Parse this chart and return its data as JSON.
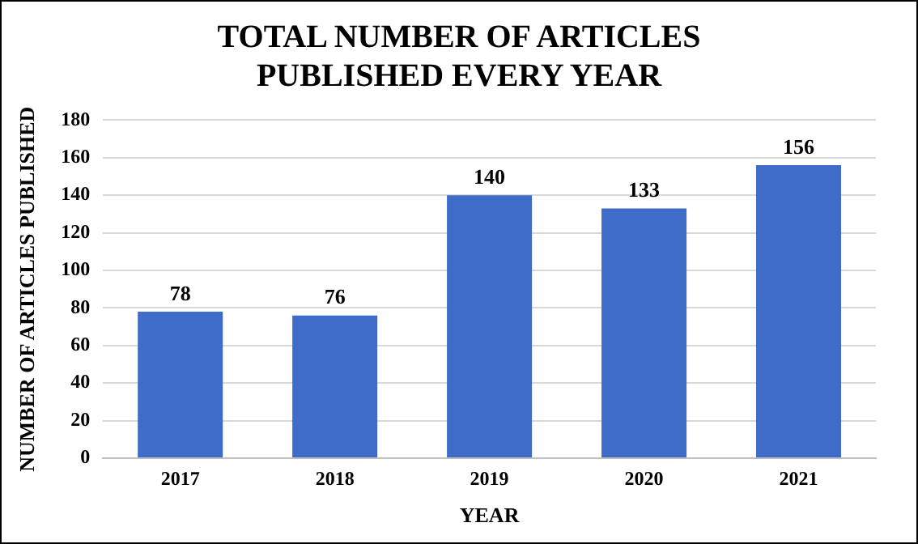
{
  "chart_data": {
    "type": "bar",
    "title": "TOTAL NUMBER OF ARTICLES PUBLISHED EVERY YEAR",
    "xlabel": "YEAR",
    "ylabel": "NUMBER OF ARTICLES PUBLISHED",
    "categories": [
      "2017",
      "2018",
      "2019",
      "2020",
      "2021"
    ],
    "values": [
      78,
      76,
      140,
      133,
      156
    ],
    "color": "#3f6cc8",
    "ylim": [
      0,
      180
    ],
    "yticks": [
      0,
      20,
      40,
      60,
      80,
      100,
      120,
      140,
      160,
      180
    ],
    "grid": "y",
    "data_labels": true
  }
}
